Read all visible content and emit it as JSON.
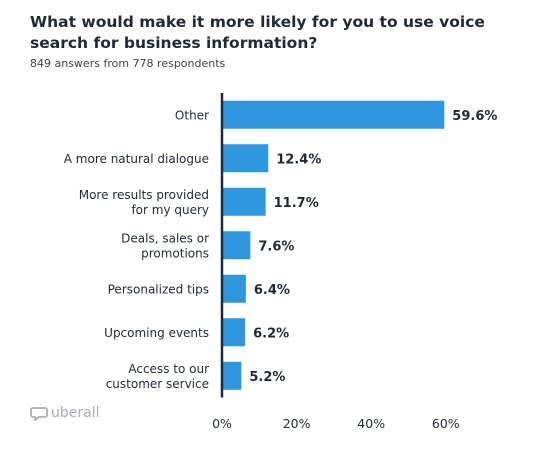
{
  "title": "What would make it more likely for you to use voice search for business information?",
  "subtitle": "849 answers from 778 respondents",
  "brand": {
    "name": "uberall",
    "icon": "uberall-logo-icon"
  },
  "colors": {
    "bar": "#2f97de",
    "text": "#1f2a38",
    "axis": "#1f2a38",
    "brand": "#a8aeb6"
  },
  "chart_data": {
    "type": "bar",
    "orientation": "horizontal",
    "title": "What would make it more likely for you to use voice search for business information?",
    "subtitle": "849 answers from 778 respondents",
    "categories": [
      [
        "Other"
      ],
      [
        "A more natural dialogue"
      ],
      [
        "More results provided",
        "for my query"
      ],
      [
        "Deals, sales or",
        "promotions"
      ],
      [
        "Personalized tips"
      ],
      [
        "Upcoming events"
      ],
      [
        "Access to our",
        "customer service"
      ]
    ],
    "values": [
      59.6,
      12.4,
      11.7,
      7.6,
      6.4,
      6.2,
      5.2
    ],
    "value_labels": [
      "59.6%",
      "12.4%",
      "11.7%",
      "7.6%",
      "6.4%",
      "6.2%",
      "5.2%"
    ],
    "xticks": [
      "0%",
      "20%",
      "40%",
      "60%"
    ],
    "xtick_values": [
      0,
      20,
      40,
      60
    ],
    "xlim": [
      0,
      60
    ],
    "xlabel": "",
    "ylabel": "",
    "grid": false,
    "legend": "none"
  }
}
